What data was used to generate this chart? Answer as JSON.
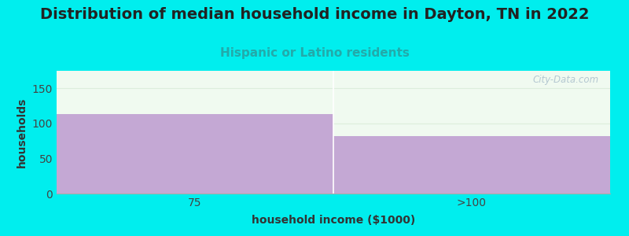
{
  "title": "Distribution of median household income in Dayton, TN in 2022",
  "subtitle": "Hispanic or Latino residents",
  "xlabel": "household income ($1000)",
  "ylabel": "households",
  "categories": [
    "75",
    ">100"
  ],
  "values": [
    113,
    82
  ],
  "bar_color": "#C4A8D4",
  "background_color": "#00EEEE",
  "plot_bg_color": "#F0FAF0",
  "title_fontsize": 14,
  "subtitle_fontsize": 11,
  "subtitle_color": "#22AAAA",
  "axis_label_fontsize": 10,
  "tick_fontsize": 10,
  "ylim": [
    0,
    175
  ],
  "yticks": [
    0,
    50,
    100,
    150
  ],
  "watermark": "City-Data.com",
  "watermark_color": "#AABFCC",
  "grid_color": "#DDEEDC"
}
